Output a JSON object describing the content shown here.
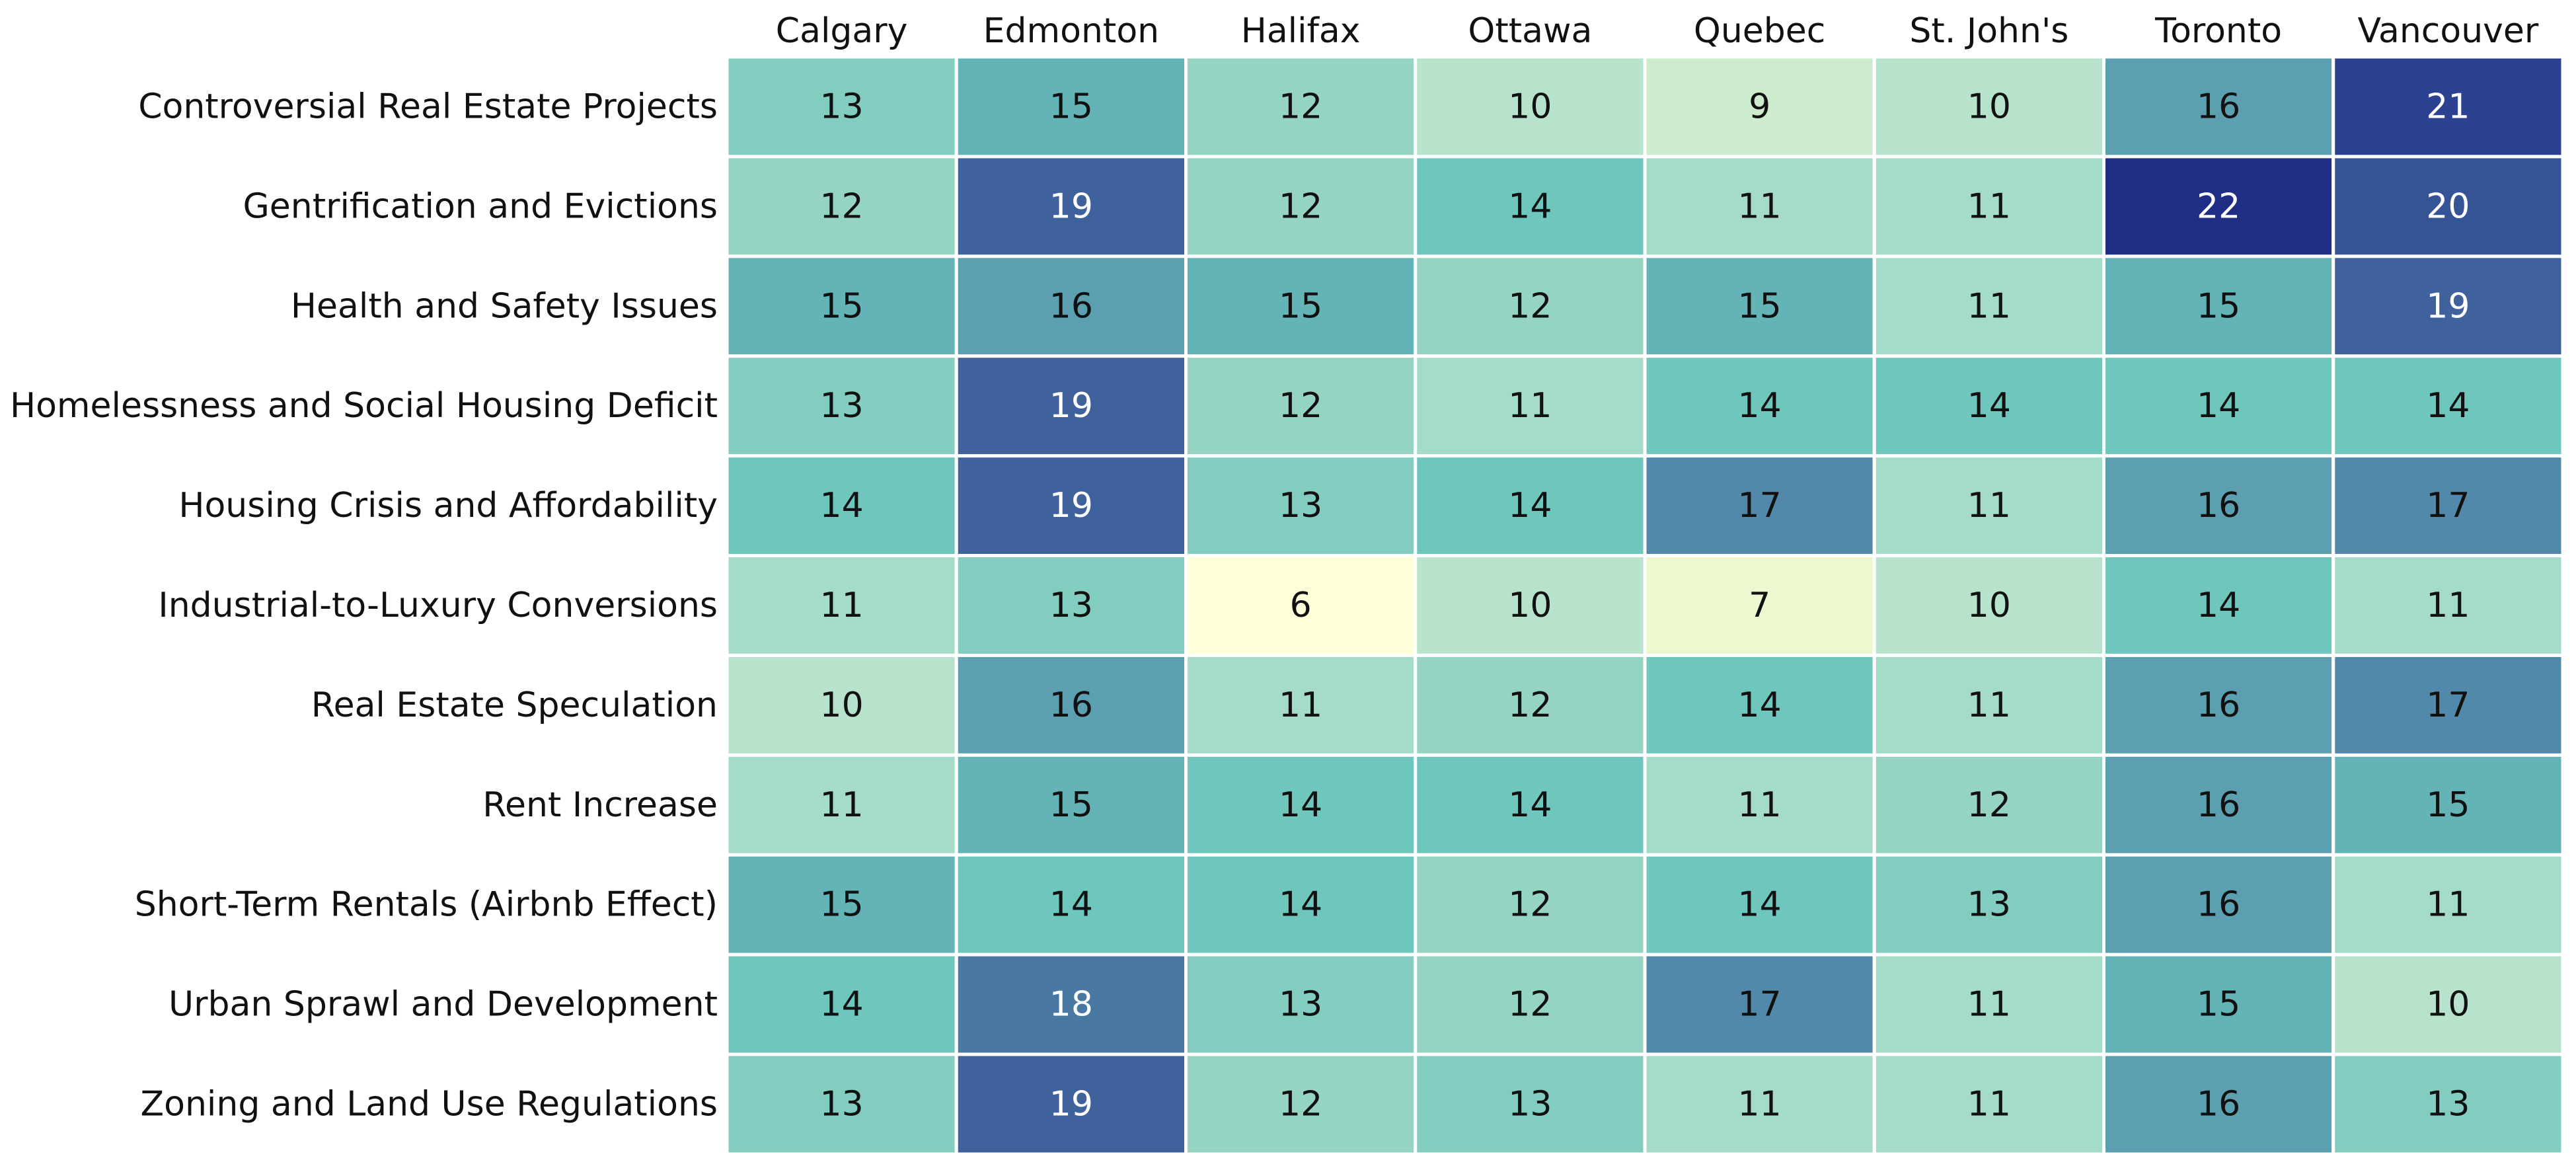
{
  "chart_data": {
    "type": "heatmap",
    "title": "",
    "xlabel": "",
    "ylabel": "",
    "columns": [
      "Calgary",
      "Edmonton",
      "Halifax",
      "Ottawa",
      "Quebec",
      "St. John's",
      "Toronto",
      "Vancouver"
    ],
    "rows": [
      "Controversial Real Estate Projects",
      "Gentrification and Evictions",
      "Health and Safety Issues",
      "Homelessness and Social Housing Deficit",
      "Housing Crisis and Affordability",
      "Industrial-to-Luxury Conversions",
      "Real Estate Speculation",
      "Rent Increase",
      "Short-Term Rentals (Airbnb Effect)",
      "Urban Sprawl and Development",
      "Zoning and Land Use Regulations"
    ],
    "values": [
      [
        13,
        15,
        12,
        10,
        9,
        10,
        16,
        21
      ],
      [
        12,
        19,
        12,
        14,
        11,
        11,
        22,
        20
      ],
      [
        15,
        16,
        15,
        12,
        15,
        11,
        15,
        19
      ],
      [
        13,
        19,
        12,
        11,
        14,
        14,
        14,
        14
      ],
      [
        14,
        19,
        13,
        14,
        17,
        11,
        16,
        17
      ],
      [
        11,
        13,
        6,
        10,
        7,
        10,
        14,
        11
      ],
      [
        10,
        16,
        11,
        12,
        14,
        11,
        16,
        17
      ],
      [
        11,
        15,
        14,
        14,
        11,
        12,
        16,
        15
      ],
      [
        15,
        14,
        14,
        12,
        14,
        13,
        16,
        11
      ],
      [
        14,
        18,
        13,
        12,
        17,
        11,
        15,
        10
      ],
      [
        13,
        19,
        12,
        13,
        11,
        11,
        16,
        13
      ]
    ],
    "colormap": "YlGnBu",
    "value_range": [
      6,
      22
    ],
    "colorbar": false,
    "grid": false,
    "color_stops": [
      {
        "value": 6,
        "color": "#ffffd9"
      },
      {
        "value": 7,
        "color": "#edf8d0"
      },
      {
        "value": 9,
        "color": "#cdebcd"
      },
      {
        "value": 10,
        "color": "#b7e3cc"
      },
      {
        "value": 11,
        "color": "#a5dcc8"
      },
      {
        "value": 12,
        "color": "#95d3c2"
      },
      {
        "value": 13,
        "color": "#82cdbf"
      },
      {
        "value": 14,
        "color": "#6fc6bd"
      },
      {
        "value": 15,
        "color": "#64b3b7"
      },
      {
        "value": 16,
        "color": "#5b9fb1"
      },
      {
        "value": 17,
        "color": "#5289aa"
      },
      {
        "value": 18,
        "color": "#4978a3"
      },
      {
        "value": 19,
        "color": "#3f629c"
      },
      {
        "value": 20,
        "color": "#345495"
      },
      {
        "value": 21,
        "color": "#2c418f"
      },
      {
        "value": 22,
        "color": "#202d85"
      }
    ],
    "light_text_threshold": 18,
    "text_color_dark": "#111111",
    "text_color_light": "#ffffff"
  }
}
